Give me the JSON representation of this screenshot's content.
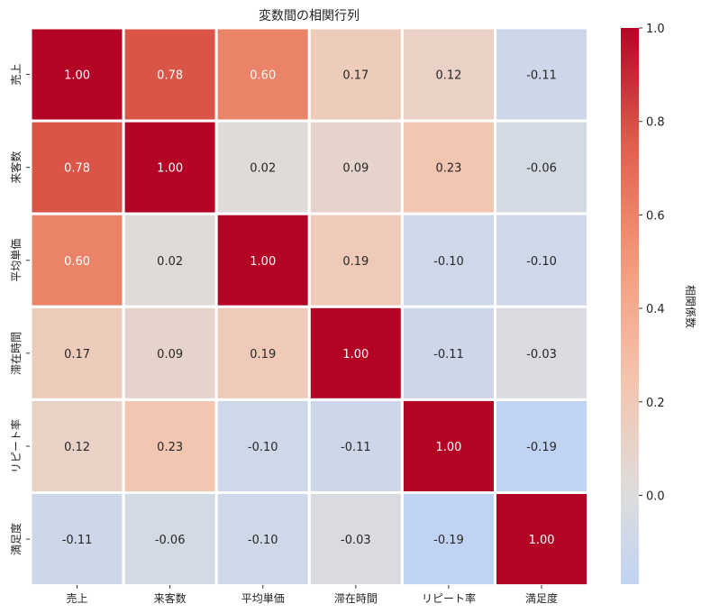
{
  "chart_data": {
    "type": "heatmap",
    "title": "変数間の相関行列",
    "labels": [
      "売上",
      "来客数",
      "平均単価",
      "滞在時間",
      "リピート率",
      "満足度"
    ],
    "values": [
      [
        1.0,
        0.78,
        0.6,
        0.17,
        0.12,
        -0.11
      ],
      [
        0.78,
        1.0,
        0.02,
        0.09,
        0.23,
        -0.06
      ],
      [
        0.6,
        0.02,
        1.0,
        0.19,
        -0.1,
        -0.1
      ],
      [
        0.17,
        0.09,
        0.19,
        1.0,
        -0.11,
        -0.03
      ],
      [
        0.12,
        0.23,
        -0.1,
        -0.11,
        1.0,
        -0.19
      ],
      [
        -0.11,
        -0.06,
        -0.1,
        -0.03,
        -0.19,
        1.0
      ]
    ],
    "colormap": "coolwarm",
    "center": 0,
    "vmin": -0.19,
    "vmax": 1.0,
    "colorbar": {
      "label": "相関係数",
      "ticks": [
        0.0,
        0.2,
        0.4,
        0.6,
        0.8,
        1.0
      ],
      "tick_labels": [
        "0.0",
        "0.2",
        "0.4",
        "0.6",
        "0.8",
        "1.0"
      ]
    },
    "annotation_format": "0.00"
  }
}
